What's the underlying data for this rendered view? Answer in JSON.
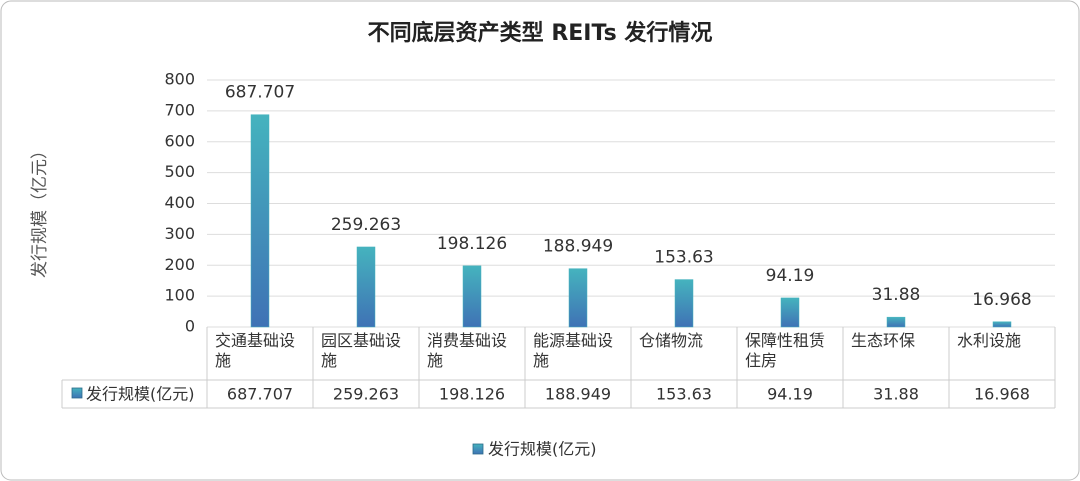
{
  "chart_data": {
    "type": "bar",
    "title": "不同底层资产类型 REITs 发行情况",
    "y_axis_label": "发行规模（亿元）",
    "categories": [
      "交通基础设施",
      "园区基础设施",
      "消费基础设施",
      "能源基础设施",
      "仓储物流",
      "保障性租赁住房",
      "生态环保",
      "水利设施"
    ],
    "series": [
      {
        "name": "发行规模(亿元)",
        "color": "#45b3be",
        "values": [
          687.707,
          259.263,
          198.126,
          188.949,
          153.63,
          94.19,
          31.88,
          16.968
        ]
      }
    ],
    "ylim": [
      0,
      800
    ],
    "yticks": [
      0,
      100,
      200,
      300,
      400,
      500,
      600,
      700,
      800
    ],
    "grid": true,
    "legend": "bottom",
    "data_table": true
  }
}
